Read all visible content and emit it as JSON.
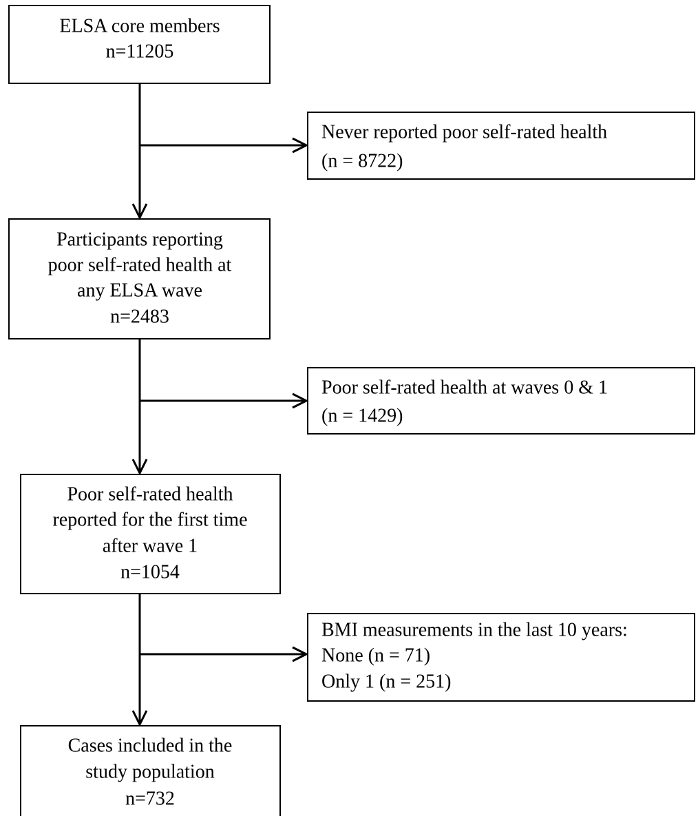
{
  "nodes": [
    {
      "lines": [
        "ELSA core members",
        "n=11205"
      ]
    },
    {
      "lines": [
        "Never reported poor self-rated health",
        "(n = 8722)"
      ]
    },
    {
      "lines": [
        "Participants reporting",
        "poor self-rated health at",
        "any ELSA wave",
        "n=2483"
      ]
    },
    {
      "lines": [
        "Poor self-rated health at waves 0 & 1",
        "(n = 1429)"
      ]
    },
    {
      "lines": [
        "Poor self-rated health",
        "reported for the first time",
        "after wave 1",
        "n=1054"
      ]
    },
    {
      "lines": [
        "BMI measurements in the last 10 years:",
        "None (n = 71)",
        "Only 1 (n = 251)"
      ]
    },
    {
      "lines": [
        "Cases included in the",
        "study population",
        "n=732"
      ]
    }
  ]
}
